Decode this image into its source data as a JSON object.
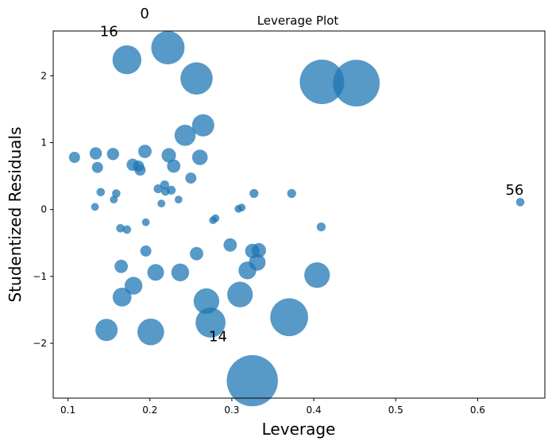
{
  "chart_data": {
    "type": "scatter",
    "title": "Leverage Plot",
    "xlabel": "Leverage",
    "ylabel": "Studentized Residuals",
    "xlim": [
      0.082,
      0.682
    ],
    "ylim": [
      -2.82,
      2.67
    ],
    "xticks": [
      0.1,
      0.2,
      0.3,
      0.4,
      0.5,
      0.6
    ],
    "xtick_labels": [
      "0.1",
      "0.2",
      "0.3",
      "0.4",
      "0.5",
      "0.6"
    ],
    "yticks": [
      -2,
      -1,
      0,
      1,
      2
    ],
    "ytick_labels": [
      "−2",
      "−1",
      "0",
      "1",
      "2"
    ],
    "grid": false,
    "marker_color": "#1f77b4",
    "marker_alpha": 0.75,
    "points": [
      {
        "x": 0.222,
        "y": 2.42,
        "size": 3.0
      },
      {
        "x": 0.172,
        "y": 2.24,
        "size": 2.6
      },
      {
        "x": 0.257,
        "y": 1.96,
        "size": 2.9
      },
      {
        "x": 0.41,
        "y": 1.91,
        "size": 4.0
      },
      {
        "x": 0.452,
        "y": 1.89,
        "size": 4.2
      },
      {
        "x": 0.265,
        "y": 1.26,
        "size": 2.0
      },
      {
        "x": 0.243,
        "y": 1.11,
        "size": 1.9
      },
      {
        "x": 0.108,
        "y": 0.78,
        "size": 1.0
      },
      {
        "x": 0.134,
        "y": 0.84,
        "size": 1.1
      },
      {
        "x": 0.155,
        "y": 0.83,
        "size": 1.1
      },
      {
        "x": 0.194,
        "y": 0.87,
        "size": 1.2
      },
      {
        "x": 0.223,
        "y": 0.81,
        "size": 1.3
      },
      {
        "x": 0.261,
        "y": 0.78,
        "size": 1.4
      },
      {
        "x": 0.136,
        "y": 0.63,
        "size": 1.0
      },
      {
        "x": 0.179,
        "y": 0.67,
        "size": 1.1
      },
      {
        "x": 0.186,
        "y": 0.65,
        "size": 1.0
      },
      {
        "x": 0.188,
        "y": 0.59,
        "size": 1.0
      },
      {
        "x": 0.229,
        "y": 0.65,
        "size": 1.2
      },
      {
        "x": 0.25,
        "y": 0.47,
        "size": 1.0
      },
      {
        "x": 0.14,
        "y": 0.26,
        "size": 0.75
      },
      {
        "x": 0.159,
        "y": 0.24,
        "size": 0.75
      },
      {
        "x": 0.156,
        "y": 0.15,
        "size": 0.7
      },
      {
        "x": 0.133,
        "y": 0.04,
        "size": 0.7
      },
      {
        "x": 0.21,
        "y": 0.31,
        "size": 0.8
      },
      {
        "x": 0.218,
        "y": 0.37,
        "size": 0.8
      },
      {
        "x": 0.219,
        "y": 0.27,
        "size": 0.75
      },
      {
        "x": 0.226,
        "y": 0.29,
        "size": 0.8
      },
      {
        "x": 0.214,
        "y": 0.09,
        "size": 0.7
      },
      {
        "x": 0.235,
        "y": 0.15,
        "size": 0.7
      },
      {
        "x": 0.195,
        "y": -0.19,
        "size": 0.7
      },
      {
        "x": 0.28,
        "y": -0.13,
        "size": 0.7
      },
      {
        "x": 0.277,
        "y": -0.16,
        "size": 0.7
      },
      {
        "x": 0.308,
        "y": 0.01,
        "size": 0.7
      },
      {
        "x": 0.312,
        "y": 0.03,
        "size": 0.7
      },
      {
        "x": 0.327,
        "y": 0.24,
        "size": 0.8
      },
      {
        "x": 0.373,
        "y": 0.24,
        "size": 0.8
      },
      {
        "x": 0.652,
        "y": 0.11,
        "size": 0.75
      },
      {
        "x": 0.409,
        "y": -0.26,
        "size": 0.8
      },
      {
        "x": 0.164,
        "y": -0.28,
        "size": 0.75
      },
      {
        "x": 0.172,
        "y": -0.3,
        "size": 0.75
      },
      {
        "x": 0.195,
        "y": -0.62,
        "size": 1.0
      },
      {
        "x": 0.257,
        "y": -0.66,
        "size": 1.2
      },
      {
        "x": 0.298,
        "y": -0.53,
        "size": 1.2
      },
      {
        "x": 0.325,
        "y": -0.62,
        "size": 1.3
      },
      {
        "x": 0.333,
        "y": -0.61,
        "size": 1.3
      },
      {
        "x": 0.331,
        "y": -0.79,
        "size": 1.5
      },
      {
        "x": 0.319,
        "y": -0.91,
        "size": 1.6
      },
      {
        "x": 0.165,
        "y": -0.85,
        "size": 1.2
      },
      {
        "x": 0.207,
        "y": -0.94,
        "size": 1.5
      },
      {
        "x": 0.237,
        "y": -0.94,
        "size": 1.6
      },
      {
        "x": 0.404,
        "y": -0.98,
        "size": 2.3
      },
      {
        "x": 0.18,
        "y": -1.14,
        "size": 1.6
      },
      {
        "x": 0.166,
        "y": -1.31,
        "size": 1.7
      },
      {
        "x": 0.269,
        "y": -1.37,
        "size": 2.3
      },
      {
        "x": 0.31,
        "y": -1.27,
        "size": 2.3
      },
      {
        "x": 0.274,
        "y": -1.69,
        "size": 2.7
      },
      {
        "x": 0.37,
        "y": -1.61,
        "size": 3.4
      },
      {
        "x": 0.147,
        "y": -1.8,
        "size": 2.0
      },
      {
        "x": 0.201,
        "y": -1.83,
        "size": 2.4
      },
      {
        "x": 0.325,
        "y": -2.56,
        "size": 4.6
      }
    ],
    "annotations": [
      {
        "text": "0",
        "x": 0.188,
        "y": 2.86
      },
      {
        "text": "16",
        "x": 0.139,
        "y": 2.59
      },
      {
        "text": "56",
        "x": 0.634,
        "y": 0.22
      },
      {
        "text": "14",
        "x": 0.272,
        "y": -1.97
      }
    ]
  }
}
